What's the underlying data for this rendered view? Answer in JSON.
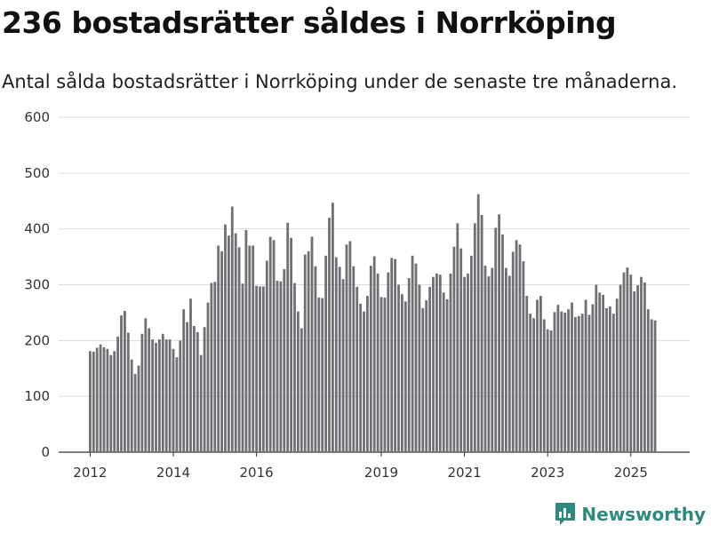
{
  "header": {
    "title": "236 bostadsrätter såldes i Norrköping",
    "subtitle": "Antal sålda bostadsrätter i Norrköping under de senaste tre månaderna."
  },
  "brand": {
    "name": "Newsworthy",
    "logo_icon": "newsworthy-chart-logo-icon"
  },
  "colors": {
    "bar": "#6f6f74",
    "highlight": "#1aa090",
    "grid": "#dddddd",
    "brand": "#2e8a7f"
  },
  "chart_data": {
    "type": "bar",
    "title": "236 bostadsrätter såldes i Norrköping",
    "subtitle": "Antal sålda bostadsrätter i Norrköping under de senaste tre månaderna.",
    "xlabel": "",
    "ylabel": "",
    "ylim": [
      0,
      600
    ],
    "yticks": [
      0,
      100,
      200,
      300,
      400,
      500,
      600
    ],
    "grid": "horizontal",
    "xticks": [
      {
        "label": "2012",
        "index": 0
      },
      {
        "label": "2014",
        "index": 24
      },
      {
        "label": "2016",
        "index": 48
      },
      {
        "label": "2019",
        "index": 84
      },
      {
        "label": "2021",
        "index": 108
      },
      {
        "label": "2023",
        "index": 132
      },
      {
        "label": "2025",
        "index": 156
      }
    ],
    "highlight_index": 164,
    "highlight_label": "236",
    "values": [
      181,
      180,
      187,
      193,
      188,
      185,
      174,
      181,
      207,
      245,
      253,
      214,
      166,
      140,
      155,
      212,
      240,
      222,
      202,
      196,
      202,
      212,
      202,
      202,
      185,
      170,
      200,
      256,
      233,
      275,
      226,
      215,
      174,
      224,
      268,
      303,
      305,
      370,
      360,
      408,
      388,
      440,
      392,
      367,
      302,
      398,
      370,
      370,
      298,
      297,
      297,
      343,
      386,
      380,
      307,
      306,
      328,
      411,
      384,
      303,
      252,
      222,
      354,
      360,
      386,
      333,
      277,
      276,
      352,
      420,
      447,
      349,
      332,
      310,
      372,
      378,
      333,
      296,
      266,
      252,
      280,
      334,
      351,
      320,
      278,
      277,
      322,
      348,
      346,
      300,
      283,
      270,
      312,
      352,
      338,
      300,
      258,
      272,
      296,
      314,
      320,
      318,
      286,
      274,
      320,
      368,
      410,
      365,
      314,
      320,
      352,
      410,
      462,
      425,
      334,
      315,
      330,
      402,
      426,
      390,
      330,
      316,
      359,
      380,
      372,
      342,
      280,
      248,
      240,
      273,
      280,
      238,
      220,
      218,
      251,
      264,
      252,
      250,
      256,
      268,
      242,
      244,
      248,
      273,
      246,
      265,
      300,
      286,
      282,
      258,
      261,
      248,
      275,
      300,
      322,
      331,
      318,
      288,
      299,
      314,
      304,
      256,
      238,
      236
    ]
  }
}
